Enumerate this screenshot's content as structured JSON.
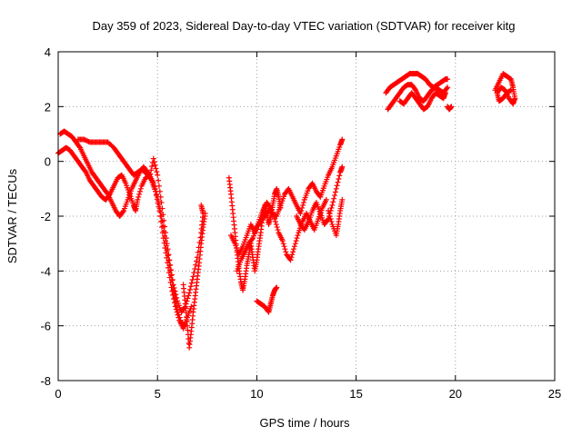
{
  "chart_data": {
    "type": "scatter",
    "title": "Day 359 of 2023, Sidereal Day-to-day VTEC variation (SDTVAR) for receiver kitg",
    "xlabel": "GPS time / hours",
    "ylabel": "SDTVAR / TECUs",
    "xlim": [
      0,
      25
    ],
    "ylim": [
      -8,
      4
    ],
    "xticks": [
      "0",
      "5",
      "10",
      "15",
      "20",
      "25"
    ],
    "yticks": [
      "-8",
      "-6",
      "-4",
      "-2",
      "0",
      "2",
      "4"
    ],
    "grid": true,
    "marker": "+",
    "color": "#ff0000",
    "series": [
      {
        "values": [
          [
            0.0,
            0.3
          ],
          [
            0.2,
            0.4
          ],
          [
            0.4,
            0.5
          ],
          [
            0.6,
            0.4
          ],
          [
            0.8,
            0.2
          ],
          [
            1.0,
            0.0
          ],
          [
            1.2,
            -0.2
          ],
          [
            1.4,
            -0.4
          ],
          [
            1.6,
            -0.7
          ],
          [
            1.8,
            -0.9
          ],
          [
            2.0,
            -1.1
          ],
          [
            2.2,
            -1.3
          ],
          [
            2.4,
            -1.4
          ],
          [
            2.6,
            -1.2
          ],
          [
            2.8,
            -0.9
          ],
          [
            3.0,
            -0.6
          ],
          [
            3.2,
            -0.5
          ],
          [
            3.4,
            -0.8
          ],
          [
            3.6,
            -1.2
          ],
          [
            3.8,
            -1.6
          ],
          [
            3.9,
            -1.8
          ],
          [
            4.0,
            -1.4
          ],
          [
            4.2,
            -0.9
          ],
          [
            4.4,
            -0.6
          ],
          [
            4.6,
            -0.5
          ],
          [
            4.8,
            -0.8
          ],
          [
            5.0,
            -1.3
          ],
          [
            5.2,
            -2.0
          ],
          [
            5.4,
            -2.9
          ],
          [
            5.6,
            -3.8
          ],
          [
            5.8,
            -4.7
          ],
          [
            6.0,
            -5.4
          ],
          [
            6.2,
            -5.9
          ],
          [
            6.4,
            -6.0
          ]
        ]
      },
      {
        "values": [
          [
            0.1,
            1.0
          ],
          [
            0.3,
            1.1
          ],
          [
            0.5,
            1.0
          ],
          [
            0.7,
            0.9
          ],
          [
            0.9,
            0.7
          ],
          [
            1.1,
            0.5
          ],
          [
            1.3,
            0.2
          ],
          [
            1.5,
            -0.1
          ],
          [
            1.7,
            -0.4
          ],
          [
            1.9,
            -0.6
          ],
          [
            2.1,
            -0.8
          ],
          [
            2.3,
            -1.0
          ],
          [
            2.5,
            -1.2
          ],
          [
            2.7,
            -1.5
          ],
          [
            2.9,
            -1.8
          ],
          [
            3.1,
            -2.0
          ],
          [
            3.3,
            -1.8
          ],
          [
            3.5,
            -1.4
          ],
          [
            3.7,
            -1.0
          ],
          [
            3.9,
            -0.7
          ],
          [
            4.1,
            -0.4
          ],
          [
            4.3,
            -0.2
          ],
          [
            4.5,
            -0.4
          ],
          [
            4.7,
            -0.7
          ],
          [
            4.9,
            -1.1
          ],
          [
            5.1,
            -1.8
          ],
          [
            5.3,
            -2.8
          ],
          [
            5.5,
            -3.7
          ],
          [
            5.7,
            -4.6
          ],
          [
            5.9,
            -5.3
          ],
          [
            6.1,
            -5.8
          ],
          [
            6.3,
            -6.1
          ],
          [
            6.5,
            -5.7
          ],
          [
            6.7,
            -5.3
          ]
        ]
      },
      {
        "values": [
          [
            1.0,
            0.8
          ],
          [
            1.3,
            0.8
          ],
          [
            1.6,
            0.7
          ],
          [
            1.9,
            0.7
          ],
          [
            2.2,
            0.7
          ],
          [
            2.5,
            0.7
          ],
          [
            2.8,
            0.5
          ],
          [
            3.0,
            0.3
          ],
          [
            3.2,
            0.1
          ],
          [
            3.4,
            -0.1
          ],
          [
            3.6,
            -0.3
          ],
          [
            3.8,
            -0.5
          ],
          [
            4.0,
            -0.4
          ],
          [
            4.2,
            -0.3
          ],
          [
            4.4,
            -0.4
          ],
          [
            4.6,
            -0.6
          ],
          [
            4.8,
            0.1
          ],
          [
            5.0,
            -0.5
          ],
          [
            5.2,
            -1.5
          ],
          [
            5.4,
            -2.6
          ],
          [
            5.6,
            -3.6
          ],
          [
            5.8,
            -4.5
          ],
          [
            6.0,
            -5.1
          ],
          [
            6.2,
            -5.5
          ],
          [
            6.4,
            -5.3
          ],
          [
            6.6,
            -4.8
          ],
          [
            6.8,
            -4.2
          ],
          [
            7.0,
            -3.5
          ],
          [
            7.2,
            -2.6
          ],
          [
            7.3,
            -1.9
          ],
          [
            7.2,
            -1.6
          ]
        ]
      },
      {
        "values": [
          [
            6.3,
            -4.5
          ],
          [
            6.4,
            -5.2
          ],
          [
            6.5,
            -6.0
          ],
          [
            6.6,
            -6.8
          ],
          [
            6.7,
            -6.2
          ],
          [
            6.8,
            -5.5
          ],
          [
            6.9,
            -4.9
          ],
          [
            7.0,
            -4.3
          ],
          [
            7.1,
            -3.7
          ],
          [
            7.2,
            -3.0
          ],
          [
            7.3,
            -2.4
          ],
          [
            7.4,
            -1.9
          ]
        ]
      },
      {
        "values": [
          [
            8.6,
            -0.6
          ],
          [
            8.7,
            -1.2
          ],
          [
            8.8,
            -1.9
          ],
          [
            8.9,
            -2.6
          ],
          [
            9.0,
            -3.3
          ],
          [
            9.1,
            -3.9
          ],
          [
            9.2,
            -4.4
          ],
          [
            9.3,
            -4.7
          ],
          [
            9.4,
            -4.3
          ],
          [
            9.5,
            -3.8
          ],
          [
            9.6,
            -3.4
          ],
          [
            9.7,
            -3.0
          ],
          [
            9.8,
            -3.5
          ],
          [
            9.9,
            -4.0
          ],
          [
            10.0,
            -3.6
          ],
          [
            10.1,
            -3.1
          ],
          [
            10.2,
            -2.6
          ],
          [
            10.3,
            -2.0
          ],
          [
            10.4,
            -1.6
          ],
          [
            10.5,
            -1.9
          ],
          [
            10.6,
            -2.3
          ],
          [
            10.7,
            -2.0
          ],
          [
            10.8,
            -1.6
          ],
          [
            10.9,
            -1.2
          ],
          [
            11.0,
            -1.0
          ],
          [
            11.1,
            -1.3
          ],
          [
            11.2,
            -1.7
          ]
        ]
      },
      {
        "values": [
          [
            8.7,
            -2.7
          ],
          [
            8.9,
            -3.0
          ],
          [
            9.1,
            -3.4
          ],
          [
            9.3,
            -3.1
          ],
          [
            9.5,
            -2.7
          ],
          [
            9.7,
            -2.3
          ],
          [
            9.9,
            -2.6
          ],
          [
            10.1,
            -2.2
          ],
          [
            10.3,
            -1.8
          ],
          [
            10.5,
            -1.5
          ],
          [
            10.7,
            -1.7
          ],
          [
            10.9,
            -2.1
          ],
          [
            11.1,
            -2.6
          ],
          [
            11.3,
            -2.9
          ],
          [
            11.5,
            -3.4
          ],
          [
            11.7,
            -3.6
          ],
          [
            11.9,
            -3.1
          ],
          [
            12.1,
            -2.6
          ],
          [
            12.3,
            -2.2
          ],
          [
            12.5,
            -1.9
          ],
          [
            12.7,
            -2.2
          ],
          [
            12.9,
            -2.5
          ],
          [
            13.1,
            -2.1
          ],
          [
            13.3,
            -1.7
          ],
          [
            13.5,
            -1.4
          ]
        ]
      },
      {
        "values": [
          [
            9.0,
            -4.0
          ],
          [
            9.2,
            -3.6
          ],
          [
            9.4,
            -3.3
          ],
          [
            9.6,
            -3.0
          ],
          [
            9.8,
            -2.8
          ],
          [
            10.0,
            -2.4
          ],
          [
            10.2,
            -2.2
          ],
          [
            10.4,
            -2.0
          ],
          [
            10.6,
            -1.8
          ],
          [
            10.8,
            -1.9
          ],
          [
            11.0,
            -2.0
          ],
          [
            11.2,
            -1.6
          ],
          [
            11.4,
            -1.2
          ],
          [
            11.6,
            -1.0
          ],
          [
            11.8,
            -1.3
          ],
          [
            12.0,
            -1.6
          ],
          [
            12.2,
            -1.9
          ],
          [
            12.4,
            -1.4
          ],
          [
            12.6,
            -1.0
          ],
          [
            12.8,
            -0.8
          ],
          [
            13.0,
            -1.1
          ],
          [
            13.2,
            -1.3
          ],
          [
            13.4,
            -0.9
          ],
          [
            13.6,
            -0.5
          ],
          [
            13.8,
            -0.2
          ],
          [
            14.0,
            0.2
          ],
          [
            14.2,
            0.6
          ],
          [
            14.3,
            0.8
          ]
        ]
      },
      {
        "values": [
          [
            12.0,
            -2.0
          ],
          [
            12.2,
            -2.3
          ],
          [
            12.4,
            -2.5
          ],
          [
            12.6,
            -2.2
          ],
          [
            12.8,
            -1.8
          ],
          [
            13.0,
            -1.5
          ],
          [
            13.2,
            -1.9
          ],
          [
            13.4,
            -2.3
          ],
          [
            13.6,
            -2.1
          ],
          [
            13.8,
            -1.6
          ],
          [
            14.0,
            -1.0
          ],
          [
            14.2,
            -0.4
          ],
          [
            14.3,
            -0.2
          ]
        ]
      },
      {
        "values": [
          [
            13.6,
            -1.8
          ],
          [
            13.8,
            -2.3
          ],
          [
            14.0,
            -2.7
          ],
          [
            14.1,
            -2.3
          ],
          [
            14.2,
            -1.8
          ],
          [
            14.3,
            -1.4
          ]
        ]
      },
      {
        "values": [
          [
            10.0,
            -5.1
          ],
          [
            10.2,
            -5.2
          ],
          [
            10.4,
            -5.3
          ],
          [
            10.6,
            -5.5
          ],
          [
            10.7,
            -5.2
          ],
          [
            10.8,
            -4.9
          ],
          [
            10.9,
            -4.7
          ],
          [
            11.0,
            -4.6
          ]
        ]
      },
      {
        "values": [
          [
            16.5,
            2.5
          ],
          [
            16.7,
            2.7
          ],
          [
            16.9,
            2.8
          ],
          [
            17.1,
            2.9
          ],
          [
            17.3,
            3.0
          ],
          [
            17.5,
            3.1
          ],
          [
            17.7,
            3.2
          ],
          [
            17.9,
            3.2
          ],
          [
            18.1,
            3.2
          ],
          [
            18.3,
            3.1
          ],
          [
            18.5,
            3.0
          ],
          [
            18.7,
            2.8
          ],
          [
            18.9,
            2.7
          ],
          [
            19.1,
            2.8
          ],
          [
            19.3,
            2.9
          ],
          [
            19.5,
            3.0
          ],
          [
            19.6,
            3.0
          ]
        ]
      },
      {
        "values": [
          [
            16.6,
            1.9
          ],
          [
            16.8,
            2.1
          ],
          [
            17.0,
            2.3
          ],
          [
            17.2,
            2.5
          ],
          [
            17.4,
            2.7
          ],
          [
            17.6,
            2.8
          ],
          [
            17.8,
            2.8
          ],
          [
            18.0,
            2.6
          ],
          [
            18.2,
            2.3
          ],
          [
            18.4,
            2.2
          ],
          [
            18.6,
            2.4
          ],
          [
            18.8,
            2.6
          ],
          [
            19.0,
            2.7
          ],
          [
            19.2,
            2.6
          ],
          [
            19.4,
            2.5
          ],
          [
            19.6,
            2.7
          ]
        ]
      },
      {
        "values": [
          [
            17.2,
            2.2
          ],
          [
            17.4,
            2.1
          ],
          [
            17.6,
            2.3
          ],
          [
            17.8,
            2.5
          ],
          [
            18.0,
            2.3
          ],
          [
            18.2,
            2.1
          ],
          [
            18.4,
            1.9
          ],
          [
            18.6,
            2.0
          ],
          [
            18.8,
            2.3
          ],
          [
            19.0,
            2.5
          ],
          [
            19.2,
            2.4
          ],
          [
            19.4,
            2.3
          ],
          [
            19.5,
            2.5
          ]
        ]
      },
      {
        "values": [
          [
            19.6,
            2.0
          ],
          [
            19.7,
            1.9
          ],
          [
            19.8,
            2.0
          ]
        ]
      },
      {
        "values": [
          [
            22.0,
            2.6
          ],
          [
            22.2,
            2.9
          ],
          [
            22.4,
            3.2
          ],
          [
            22.6,
            3.1
          ],
          [
            22.8,
            3.0
          ],
          [
            22.9,
            2.7
          ],
          [
            23.0,
            2.3
          ],
          [
            22.9,
            2.1
          ],
          [
            22.7,
            2.3
          ],
          [
            22.5,
            2.6
          ],
          [
            22.3,
            2.7
          ],
          [
            22.1,
            2.5
          ],
          [
            22.2,
            2.2
          ],
          [
            22.4,
            2.3
          ],
          [
            22.6,
            2.5
          ],
          [
            22.8,
            2.6
          ]
        ]
      }
    ]
  }
}
